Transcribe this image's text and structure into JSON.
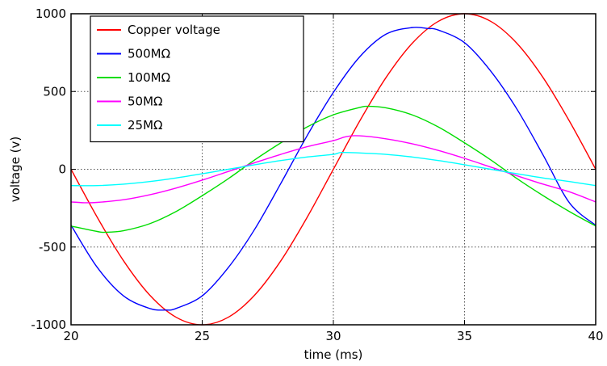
{
  "chart_data": {
    "type": "line",
    "title": "",
    "xlabel": "time (ms)",
    "ylabel": "voltage (v)",
    "xlim": [
      20,
      40
    ],
    "ylim": [
      -1000,
      1000
    ],
    "xticks": [
      "20",
      "25",
      "30",
      "35",
      "40"
    ],
    "yticks": [
      "-1000",
      "-500",
      "0",
      "500",
      "1000"
    ],
    "grid": true,
    "legend_position": "top-left",
    "series": [
      {
        "name": "Copper voltage",
        "color": "#ff0000",
        "x": [
          20,
          21,
          22,
          23,
          24,
          25,
          26,
          27,
          28,
          29,
          30,
          31,
          32,
          33,
          34,
          35,
          36,
          37,
          38,
          39,
          40
        ],
        "y": [
          0,
          -309,
          -588,
          -809,
          -951,
          -1000,
          -951,
          -809,
          -588,
          -309,
          0,
          309,
          588,
          809,
          951,
          1000,
          951,
          809,
          588,
          309,
          0
        ]
      },
      {
        "name": "500MΩ",
        "color": "#0000ff",
        "x": [
          20,
          21,
          22,
          23,
          23.6,
          24,
          25,
          26,
          27,
          28,
          29,
          30,
          31,
          32,
          33,
          33.6,
          34,
          35,
          36,
          37,
          38,
          39,
          40
        ],
        "y": [
          -360,
          -631,
          -814,
          -895,
          -905,
          -895,
          -814,
          -631,
          -386,
          -90,
          216,
          494,
          722,
          868,
          911,
          905,
          895,
          814,
          631,
          386,
          90,
          -216,
          -360
        ]
      },
      {
        "name": "100MΩ",
        "color": "#00dd00",
        "x": [
          20,
          21,
          21.3,
          22,
          23,
          24,
          25,
          26,
          27,
          28,
          29,
          30,
          31,
          31.3,
          32,
          33,
          34,
          35,
          36,
          37,
          38,
          39,
          40
        ],
        "y": [
          -365,
          -400,
          -405,
          -395,
          -350,
          -272,
          -170,
          -60,
          60,
          170,
          272,
          350,
          397,
          405,
          395,
          350,
          272,
          170,
          60,
          -60,
          -170,
          -272,
          -365
        ]
      },
      {
        "name": "50MΩ",
        "color": "#ff00ff",
        "x": [
          20,
          20.5,
          21,
          22,
          23,
          24,
          25,
          26,
          27,
          28,
          29,
          30,
          30.5,
          31,
          32,
          33,
          34,
          35,
          36,
          37,
          38,
          39,
          40
        ],
        "y": [
          -210,
          -215,
          -213,
          -196,
          -164,
          -121,
          -70,
          -14,
          42,
          96,
          145,
          184,
          210,
          215,
          196,
          164,
          121,
          70,
          14,
          -42,
          -96,
          -145,
          -210
        ]
      },
      {
        "name": "25MΩ",
        "color": "#00ffff",
        "x": [
          20,
          21,
          22,
          23,
          24,
          25,
          26,
          27,
          28,
          29,
          30,
          30.3,
          31,
          32,
          33,
          34,
          35,
          36,
          37,
          38,
          39,
          40
        ],
        "y": [
          -105,
          -105,
          -96,
          -79,
          -56,
          -29,
          0,
          29,
          56,
          79,
          96,
          108,
          105,
          96,
          79,
          56,
          29,
          0,
          -29,
          -56,
          -79,
          -105
        ]
      }
    ]
  }
}
